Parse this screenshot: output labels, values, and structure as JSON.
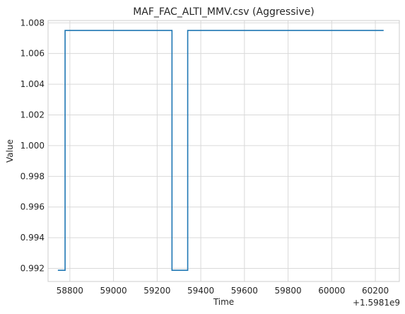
{
  "chart_data": {
    "type": "line",
    "title": "MAF_FAC_ALTI_MMV.csv (Aggressive)",
    "xlabel": "Time",
    "ylabel": "Value",
    "x_offset_label": "+1.5981e9",
    "xlim": [
      58700,
      60310
    ],
    "ylim": [
      0.99115,
      1.00815
    ],
    "x_ticks": [
      58800,
      59000,
      59200,
      59400,
      59600,
      59800,
      60000,
      60200
    ],
    "y_ticks": [
      0.992,
      0.994,
      0.996,
      0.998,
      1.0,
      1.002,
      1.004,
      1.006,
      1.008
    ],
    "x_tick_labels": [
      "58800",
      "59000",
      "59200",
      "59400",
      "59600",
      "59800",
      "60000",
      "60200"
    ],
    "y_tick_labels": [
      "0.992",
      "0.994",
      "0.996",
      "0.998",
      "1.000",
      "1.002",
      "1.004",
      "1.006",
      "1.008"
    ],
    "grid": true,
    "line_color": "#1f77b4",
    "series": [
      {
        "x": [
          58745,
          58778,
          58778,
          59268,
          59268,
          59340,
          59340,
          60238
        ],
        "y": [
          0.99188,
          0.99188,
          1.0075,
          1.0075,
          0.99188,
          0.99188,
          1.0075,
          1.0075
        ]
      }
    ]
  }
}
